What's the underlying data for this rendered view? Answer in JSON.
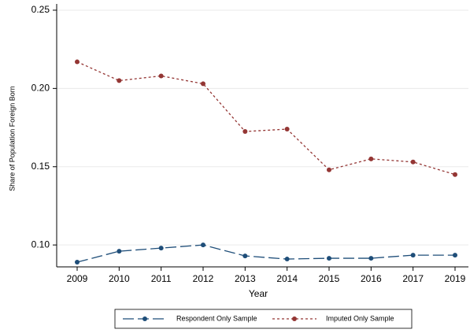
{
  "chart_data": {
    "type": "line",
    "categories": [
      "2009",
      "2010",
      "2011",
      "2012",
      "2013",
      "2014",
      "2015",
      "2016",
      "2017",
      "2019"
    ],
    "x_label": "Year",
    "y_label": "Share of Population Foreign Born",
    "ylim": [
      0.086,
      0.254
    ],
    "yticks": [
      {
        "value": 0.1,
        "label": "0.10"
      },
      0.15,
      {
        "value": 0.2,
        "label": "0.20"
      },
      0.25
    ],
    "grid": true,
    "legend": "bottom",
    "series": [
      {
        "name": "Respondent Only Sample",
        "color": "#1f4e79",
        "values": [
          0.089,
          0.096,
          0.098,
          0.1,
          0.093,
          0.091,
          0.0915,
          0.0915,
          0.0935,
          0.0935
        ]
      },
      {
        "name": "Imputed Only Sample",
        "color": "#943634",
        "values": [
          0.217,
          0.205,
          0.208,
          0.203,
          0.1725,
          0.174,
          0.148,
          0.155,
          0.153,
          0.145
        ]
      }
    ]
  }
}
